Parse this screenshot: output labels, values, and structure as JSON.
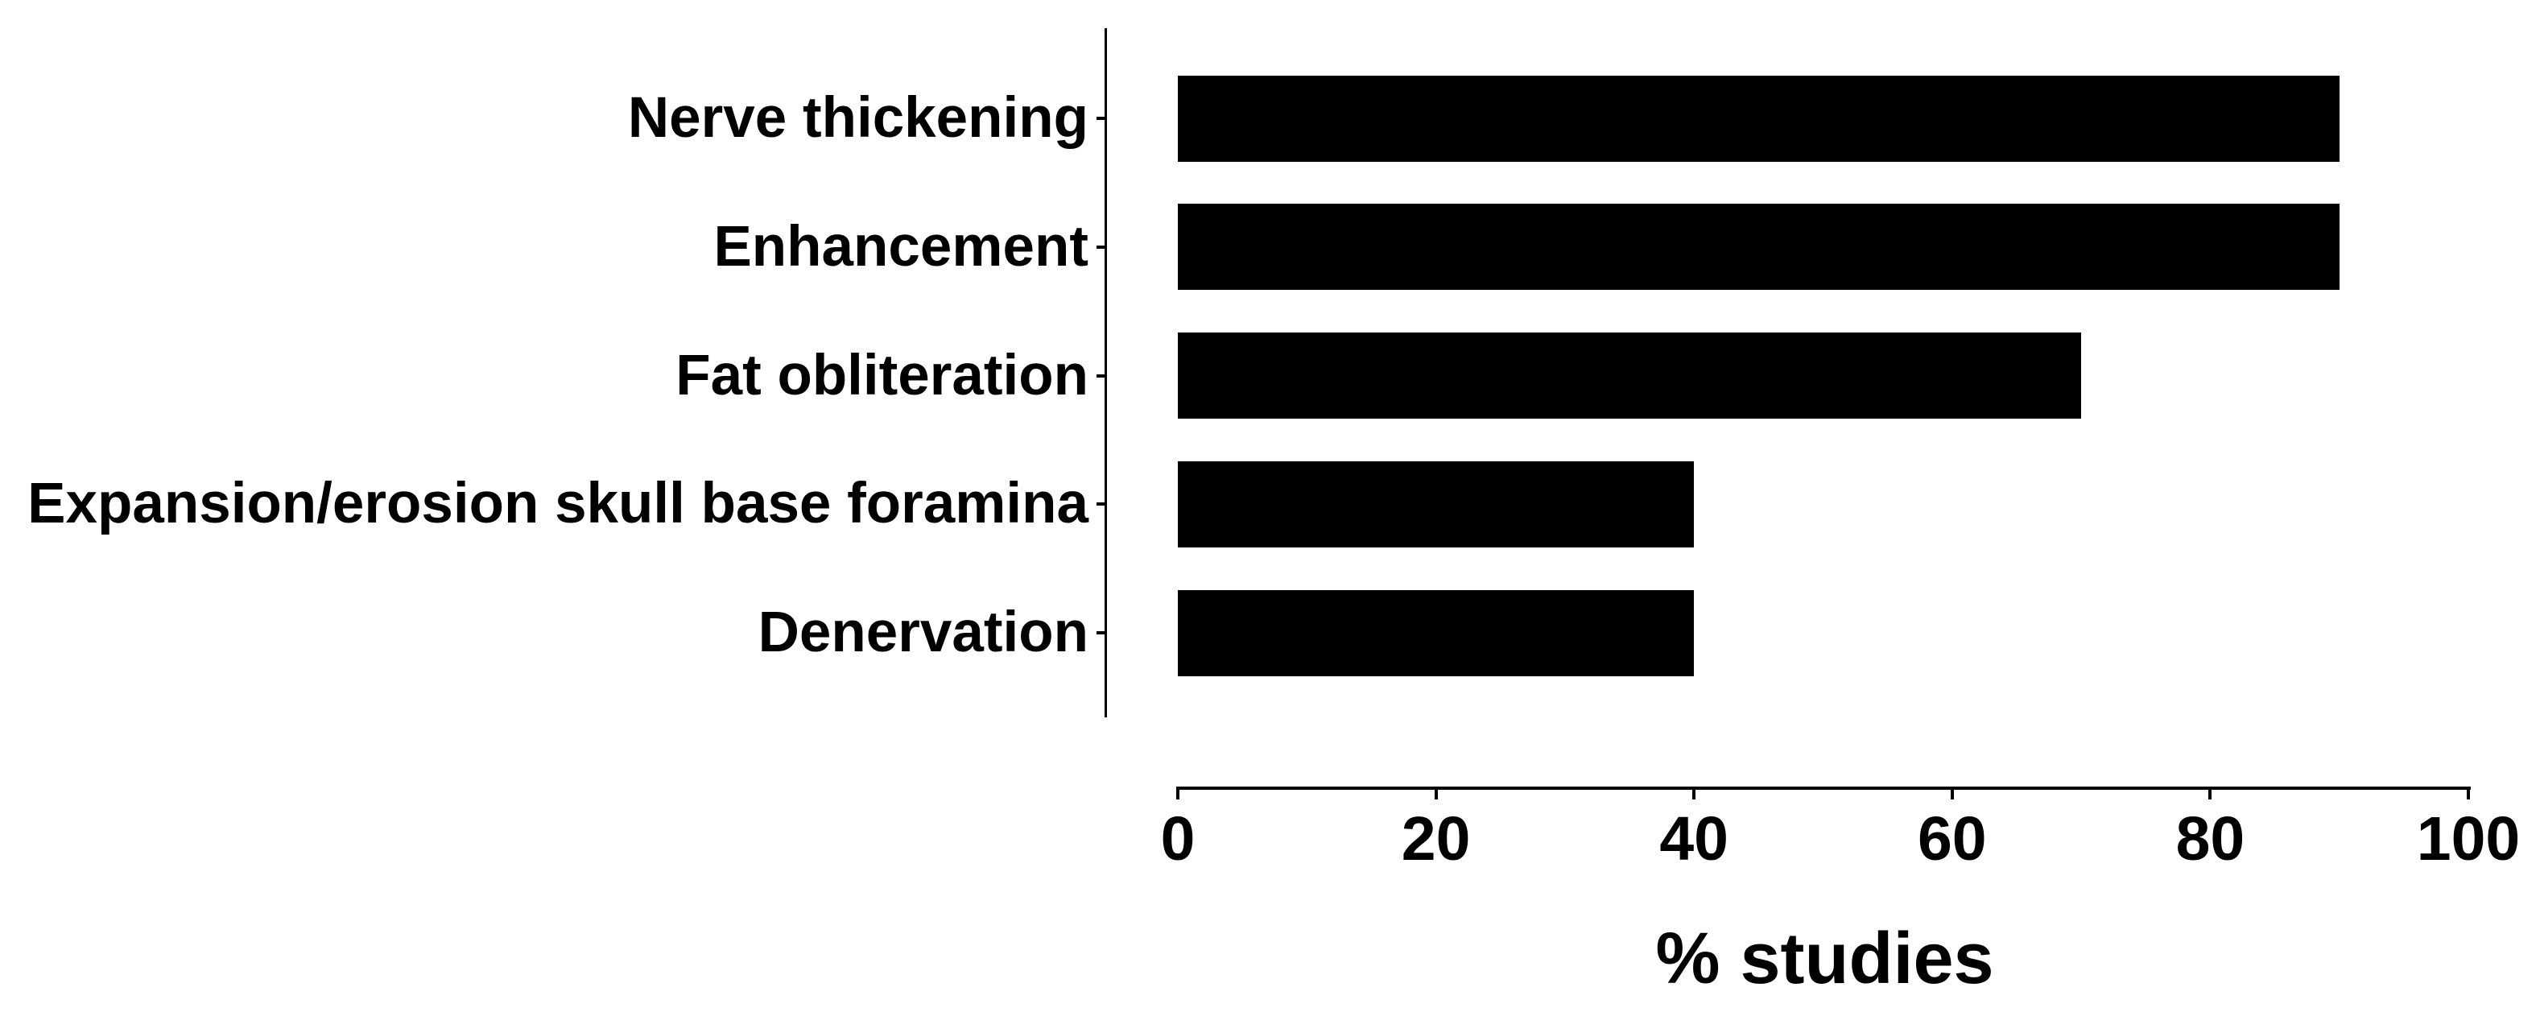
{
  "chart_data": {
    "type": "bar",
    "orientation": "horizontal",
    "title": "",
    "categories": [
      "Nerve thickening",
      "Enhancement",
      "Fat obliteration",
      "Expansion/erosion skull base foramina",
      "Denervation"
    ],
    "values": [
      90,
      90,
      70,
      40,
      40
    ],
    "xlabel": "% studies",
    "ylabel": "",
    "x_ticks": [
      0,
      20,
      40,
      60,
      80,
      100
    ],
    "xlim": [
      0,
      100
    ],
    "grid": false,
    "legend": null,
    "bar_color": "#000000",
    "axis_color": "#000000",
    "text_color": "#000000",
    "background_color": "#ffffff"
  }
}
